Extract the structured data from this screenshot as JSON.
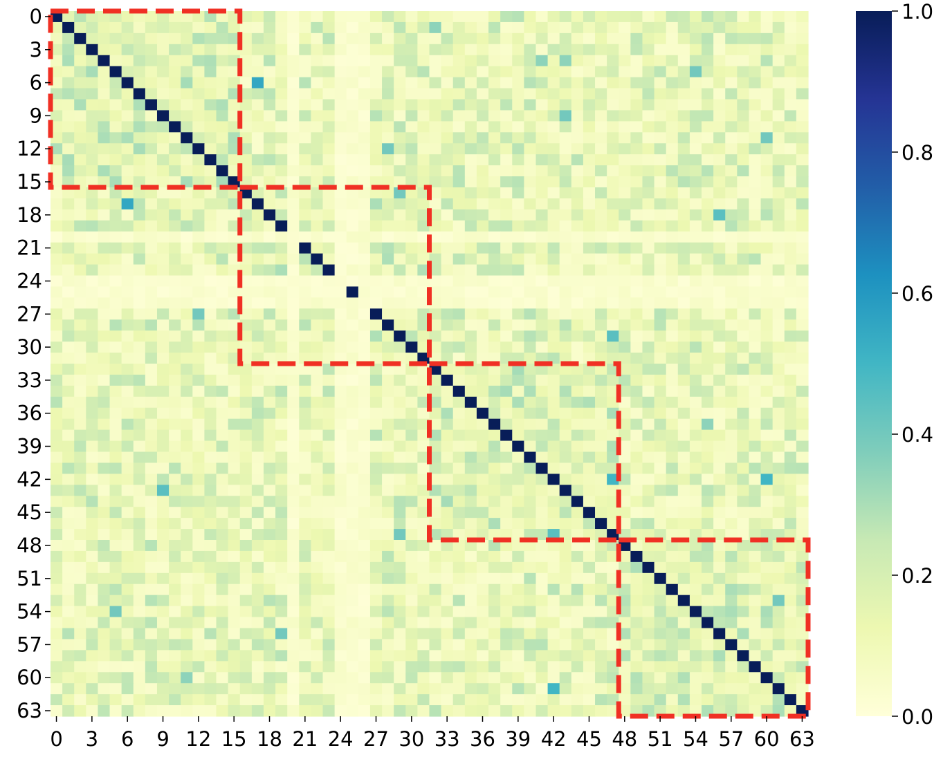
{
  "chart_data": {
    "type": "heatmap",
    "n": 64,
    "x_ticks": [
      "0",
      "3",
      "6",
      "9",
      "12",
      "15",
      "18",
      "21",
      "24",
      "27",
      "30",
      "33",
      "36",
      "39",
      "42",
      "45",
      "48",
      "51",
      "54",
      "57",
      "60",
      "63"
    ],
    "y_ticks": [
      "0",
      "3",
      "6",
      "9",
      "12",
      "15",
      "18",
      "21",
      "24",
      "27",
      "30",
      "33",
      "36",
      "39",
      "42",
      "45",
      "48",
      "51",
      "54",
      "57",
      "60",
      "63"
    ],
    "diagonal_value": 1.0,
    "off_diagonal_typical_range": [
      0.0,
      0.3
    ],
    "missing_diagonal_indices": [
      20,
      24,
      26
    ],
    "light_rows_cols": [
      20,
      24,
      25,
      26
    ],
    "notable_cells": [
      {
        "row": 17,
        "col": 6,
        "value": 0.55
      },
      {
        "row": 6,
        "col": 17,
        "value": 0.55
      },
      {
        "row": 42,
        "col": 60,
        "value": 0.5
      },
      {
        "row": 42,
        "col": 47,
        "value": 0.5
      },
      {
        "row": 47,
        "col": 42,
        "value": 0.45
      },
      {
        "row": 61,
        "col": 42,
        "value": 0.5
      },
      {
        "row": 43,
        "col": 9,
        "value": 0.45
      },
      {
        "row": 9,
        "col": 43,
        "value": 0.4
      },
      {
        "row": 12,
        "col": 28,
        "value": 0.4
      },
      {
        "row": 16,
        "col": 29,
        "value": 0.4
      },
      {
        "row": 29,
        "col": 47,
        "value": 0.45
      },
      {
        "row": 18,
        "col": 56,
        "value": 0.45
      },
      {
        "row": 5,
        "col": 54,
        "value": 0.4
      },
      {
        "row": 11,
        "col": 60,
        "value": 0.4
      },
      {
        "row": 54,
        "col": 5,
        "value": 0.4
      },
      {
        "row": 56,
        "col": 19,
        "value": 0.4
      },
      {
        "row": 27,
        "col": 12,
        "value": 0.4
      },
      {
        "row": 60,
        "col": 11,
        "value": 0.35
      },
      {
        "row": 47,
        "col": 29,
        "value": 0.4
      },
      {
        "row": 53,
        "col": 61,
        "value": 0.4
      },
      {
        "row": 1,
        "col": 32,
        "value": 0.35
      },
      {
        "row": 37,
        "col": 55,
        "value": 0.35
      },
      {
        "row": 4,
        "col": 41,
        "value": 0.35
      },
      {
        "row": 4,
        "col": 43,
        "value": 0.35
      }
    ],
    "highlighted_blocks": [
      {
        "start": 0,
        "end": 16
      },
      {
        "start": 16,
        "end": 32
      },
      {
        "start": 32,
        "end": 48
      },
      {
        "start": 48,
        "end": 64
      }
    ],
    "colorbar": {
      "min": 0.0,
      "max": 1.0,
      "ticks": [
        "0.0",
        "0.2",
        "0.4",
        "0.6",
        "0.8",
        "1.0"
      ],
      "colormap": "YlGnBu",
      "colors": [
        "#ffffd9",
        "#edf8b1",
        "#c7e9b4",
        "#7fcdbb",
        "#41b6c4",
        "#1d91c0",
        "#225ea8",
        "#253494",
        "#081d58"
      ]
    },
    "block_outline_color": "#f03024"
  }
}
